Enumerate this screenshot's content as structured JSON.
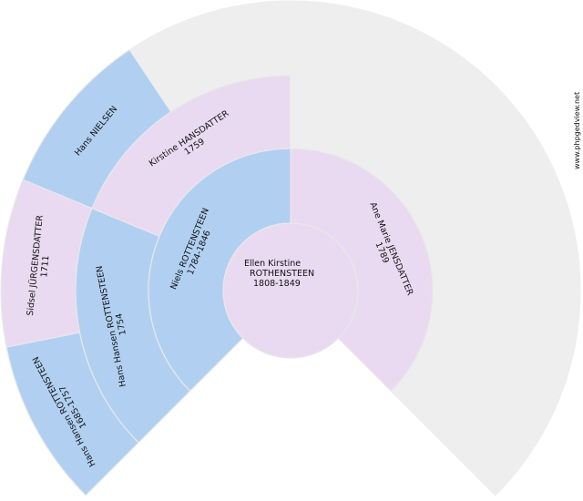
{
  "colors": {
    "male": "#b1d0f1",
    "female": "#e9daf1",
    "empty": "#eeeeee",
    "separator": "#e8e8e8"
  },
  "watermark": "www.phpgedview.net",
  "root": {
    "lines": [
      "Ellen Kirstine",
      "ROTHENSTEEN",
      "1808-1849"
    ],
    "sex": "female"
  },
  "ancestors": [
    {
      "ahnentafel": 2,
      "sex": "male",
      "lines": [
        "Niels ROTTENSTEEN",
        "1784-1846"
      ]
    },
    {
      "ahnentafel": 3,
      "sex": "female",
      "lines": [
        "Ane Marie JENSDATTER",
        "1789"
      ]
    },
    {
      "ahnentafel": 4,
      "sex": "male",
      "lines": [
        "Hans Hansen ROTTENSTEEN",
        "1754"
      ]
    },
    {
      "ahnentafel": 5,
      "sex": "female",
      "lines": [
        "Kirstine HANSDATTER",
        "1759"
      ]
    },
    {
      "ahnentafel": 8,
      "sex": "male",
      "lines": [
        "Hans Hansen ROTTENSTEEN",
        "1685-1757"
      ]
    },
    {
      "ahnentafel": 9,
      "sex": "female",
      "lines": [
        "Sidsel JÜRGENSDATTER",
        "1711"
      ]
    },
    {
      "ahnentafel": 10,
      "sex": "male",
      "lines": [
        "Hans NIELSEN"
      ]
    }
  ]
}
